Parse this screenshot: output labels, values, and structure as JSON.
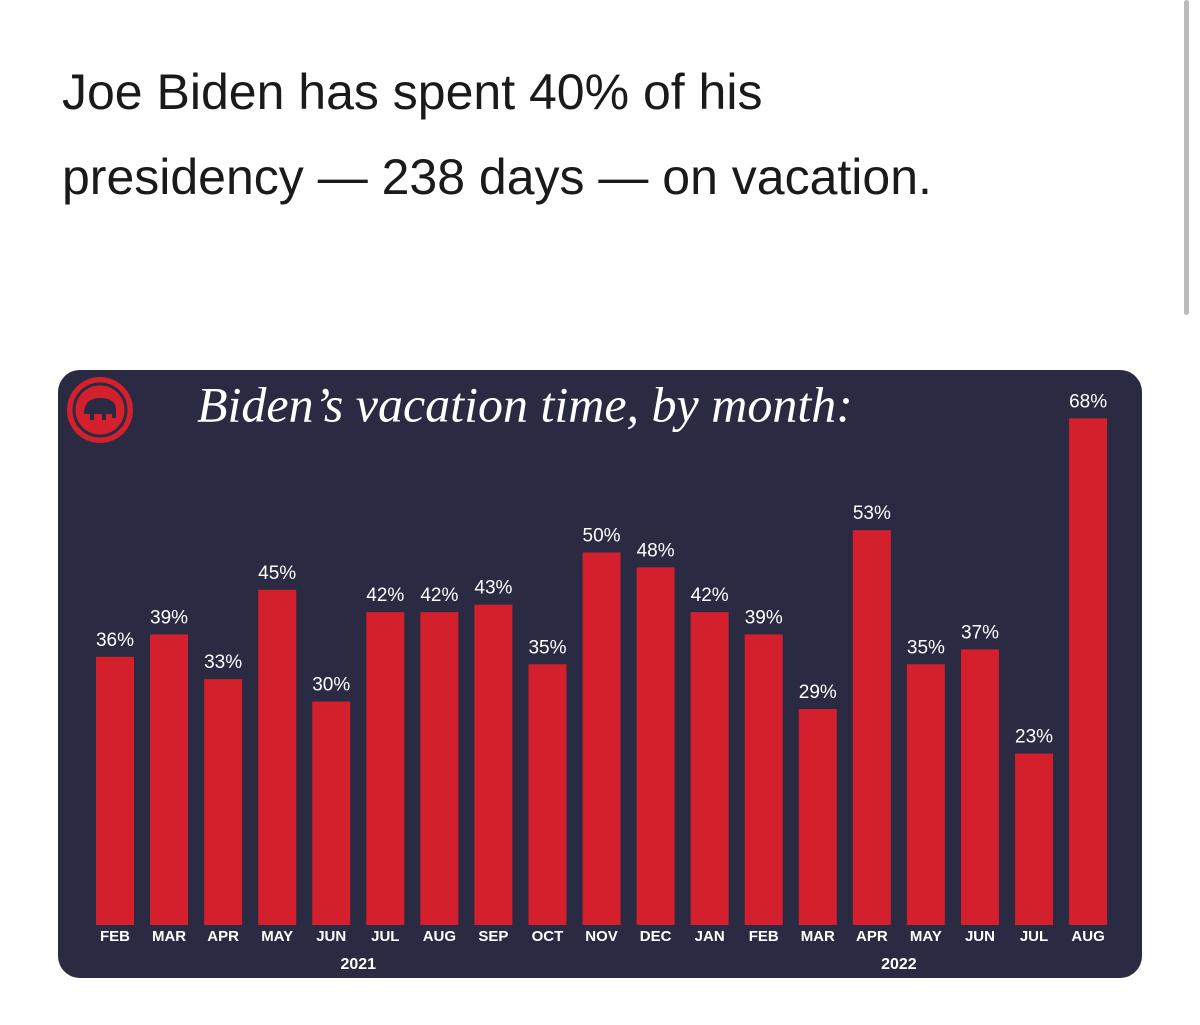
{
  "post_text": "Joe Biden has spent 40% of his presidency — 238 days — on vacation.",
  "chart_data": {
    "type": "bar",
    "title": "Biden’s vacation time, by month:",
    "categories": [
      "FEB",
      "MAR",
      "APR",
      "MAY",
      "JUN",
      "JUL",
      "AUG",
      "SEP",
      "OCT",
      "NOV",
      "DEC",
      "JAN",
      "FEB",
      "MAR",
      "APR",
      "MAY",
      "JUN",
      "JUL",
      "AUG"
    ],
    "values": [
      36,
      39,
      33,
      45,
      30,
      42,
      42,
      43,
      35,
      50,
      48,
      42,
      39,
      29,
      53,
      35,
      37,
      23,
      68
    ],
    "value_labels": [
      "36%",
      "39%",
      "33%",
      "45%",
      "30%",
      "42%",
      "42%",
      "43%",
      "35%",
      "50%",
      "48%",
      "42%",
      "39%",
      "29%",
      "53%",
      "35%",
      "37%",
      "23%",
      "68%"
    ],
    "year_labels": [
      "2021",
      "2022"
    ],
    "color": "#d41f2c"
  }
}
